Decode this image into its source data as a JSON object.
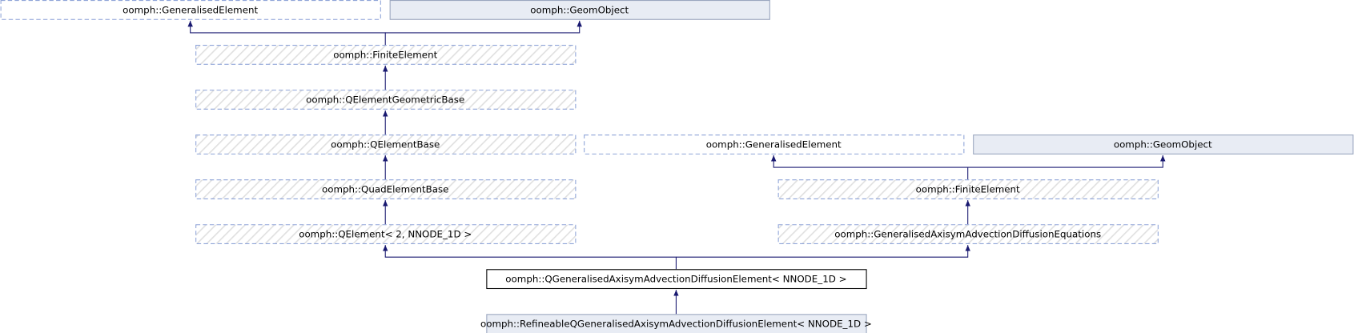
{
  "nodes": [
    {
      "label": "oomph::GeneralisedElement"
    },
    {
      "label": "oomph::GeomObject"
    },
    {
      "label": "oomph::FiniteElement"
    },
    {
      "label": "oomph::QElementGeometricBase"
    },
    {
      "label": "oomph::QElementBase"
    },
    {
      "label": "oomph::GeneralisedElement"
    },
    {
      "label": "oomph::GeomObject"
    },
    {
      "label": "oomph::QuadElementBase"
    },
    {
      "label": "oomph::FiniteElement"
    },
    {
      "label": "oomph::QElement< 2, NNODE_1D >"
    },
    {
      "label": "oomph::GeneralisedAxisymAdvectionDiffusionEquations"
    },
    {
      "label": "oomph::QGeneralisedAxisymAdvectionDiffusionElement< NNODE_1D >"
    },
    {
      "label": "oomph::RefineableQGeneralisedAxisymAdvectionDiffusionElement< NNODE_1D >"
    }
  ]
}
